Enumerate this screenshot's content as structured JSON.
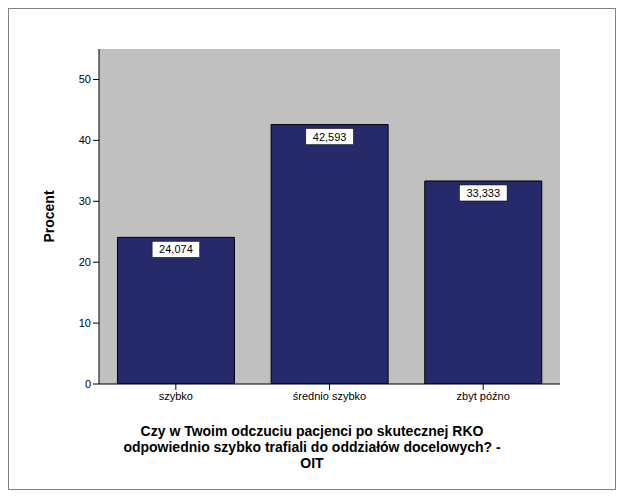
{
  "chart_data": {
    "type": "bar",
    "categories": [
      "szybko",
      "średnio szybko",
      "zbyt późno"
    ],
    "values": [
      24.074,
      42.593,
      33.333
    ],
    "value_labels": [
      "24,074",
      "42,593",
      "33,333"
    ],
    "data_labels": true,
    "color": "#262a6b",
    "ylim": [
      0,
      55
    ],
    "yticks": [
      0,
      10,
      20,
      30,
      40,
      50
    ],
    "grid": false,
    "y_label": "Procent",
    "x_label": "Czy w Twoim odczuciu pacjenci po skutecznej RKO odpowiednio szybko trafiali do oddziałów docelowych? - OIT"
  }
}
